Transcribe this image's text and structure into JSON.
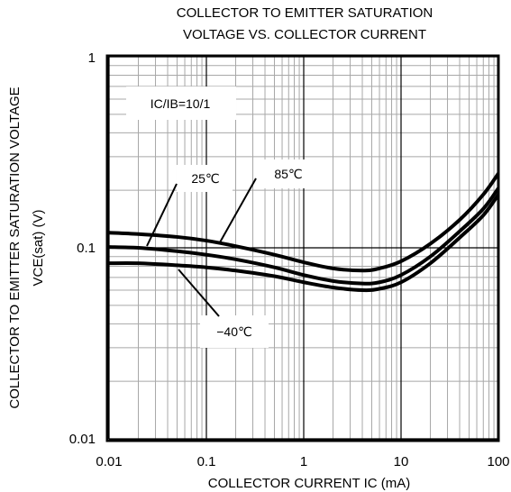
{
  "chart_data": {
    "type": "line",
    "title_lines": [
      "COLLECTOR TO EMITTER SATURATION",
      "VOLTAGE VS. COLLECTOR CURRENT"
    ],
    "xlabel": "COLLECTOR CURRENT  IC (mA)",
    "ylabel_lines": [
      "COLLECTOR TO EMITTER SATURATION VOLTAGE",
      "VCE(sat) (V)"
    ],
    "x_scale": "log",
    "y_scale": "log",
    "xlim": [
      0.01,
      100
    ],
    "ylim": [
      0.01,
      1
    ],
    "x_ticks": [
      {
        "value": 0.01,
        "label": "0.01"
      },
      {
        "value": 0.1,
        "label": "0.1"
      },
      {
        "value": 1,
        "label": "1"
      },
      {
        "value": 10,
        "label": "10"
      },
      {
        "value": 100,
        "label": "100"
      }
    ],
    "y_ticks": [
      {
        "value": 1,
        "label": "1"
      },
      {
        "value": 0.1,
        "label": "0.1"
      },
      {
        "value": 0.01,
        "label": "0.01"
      }
    ],
    "grid": true,
    "series": [
      {
        "name": "25℃",
        "x": [
          0.01,
          0.02,
          0.05,
          0.1,
          0.2,
          0.5,
          1,
          2,
          4,
          6,
          10,
          20,
          40,
          70,
          100
        ],
        "y": [
          0.101,
          0.1,
          0.096,
          0.092,
          0.087,
          0.079,
          0.072,
          0.067,
          0.065,
          0.066,
          0.072,
          0.09,
          0.122,
          0.16,
          0.205
        ]
      },
      {
        "name": "85℃",
        "x": [
          0.01,
          0.02,
          0.05,
          0.1,
          0.2,
          0.5,
          1,
          2,
          4,
          6,
          10,
          20,
          40,
          70,
          100
        ],
        "y": [
          0.12,
          0.118,
          0.114,
          0.109,
          0.102,
          0.092,
          0.084,
          0.078,
          0.076,
          0.078,
          0.085,
          0.105,
          0.14,
          0.19,
          0.245
        ]
      },
      {
        "name": "-40℃",
        "x": [
          0.01,
          0.02,
          0.05,
          0.1,
          0.2,
          0.5,
          1,
          2,
          4,
          6,
          10,
          20,
          40,
          70,
          100
        ],
        "y": [
          0.083,
          0.083,
          0.081,
          0.079,
          0.076,
          0.071,
          0.066,
          0.062,
          0.06,
          0.061,
          0.066,
          0.083,
          0.113,
          0.148,
          0.19
        ]
      }
    ],
    "annotations": [
      {
        "text": "IC/IB=10/1"
      },
      {
        "text": "25℃"
      },
      {
        "text": "85℃"
      },
      {
        "text": "−40℃"
      }
    ]
  }
}
